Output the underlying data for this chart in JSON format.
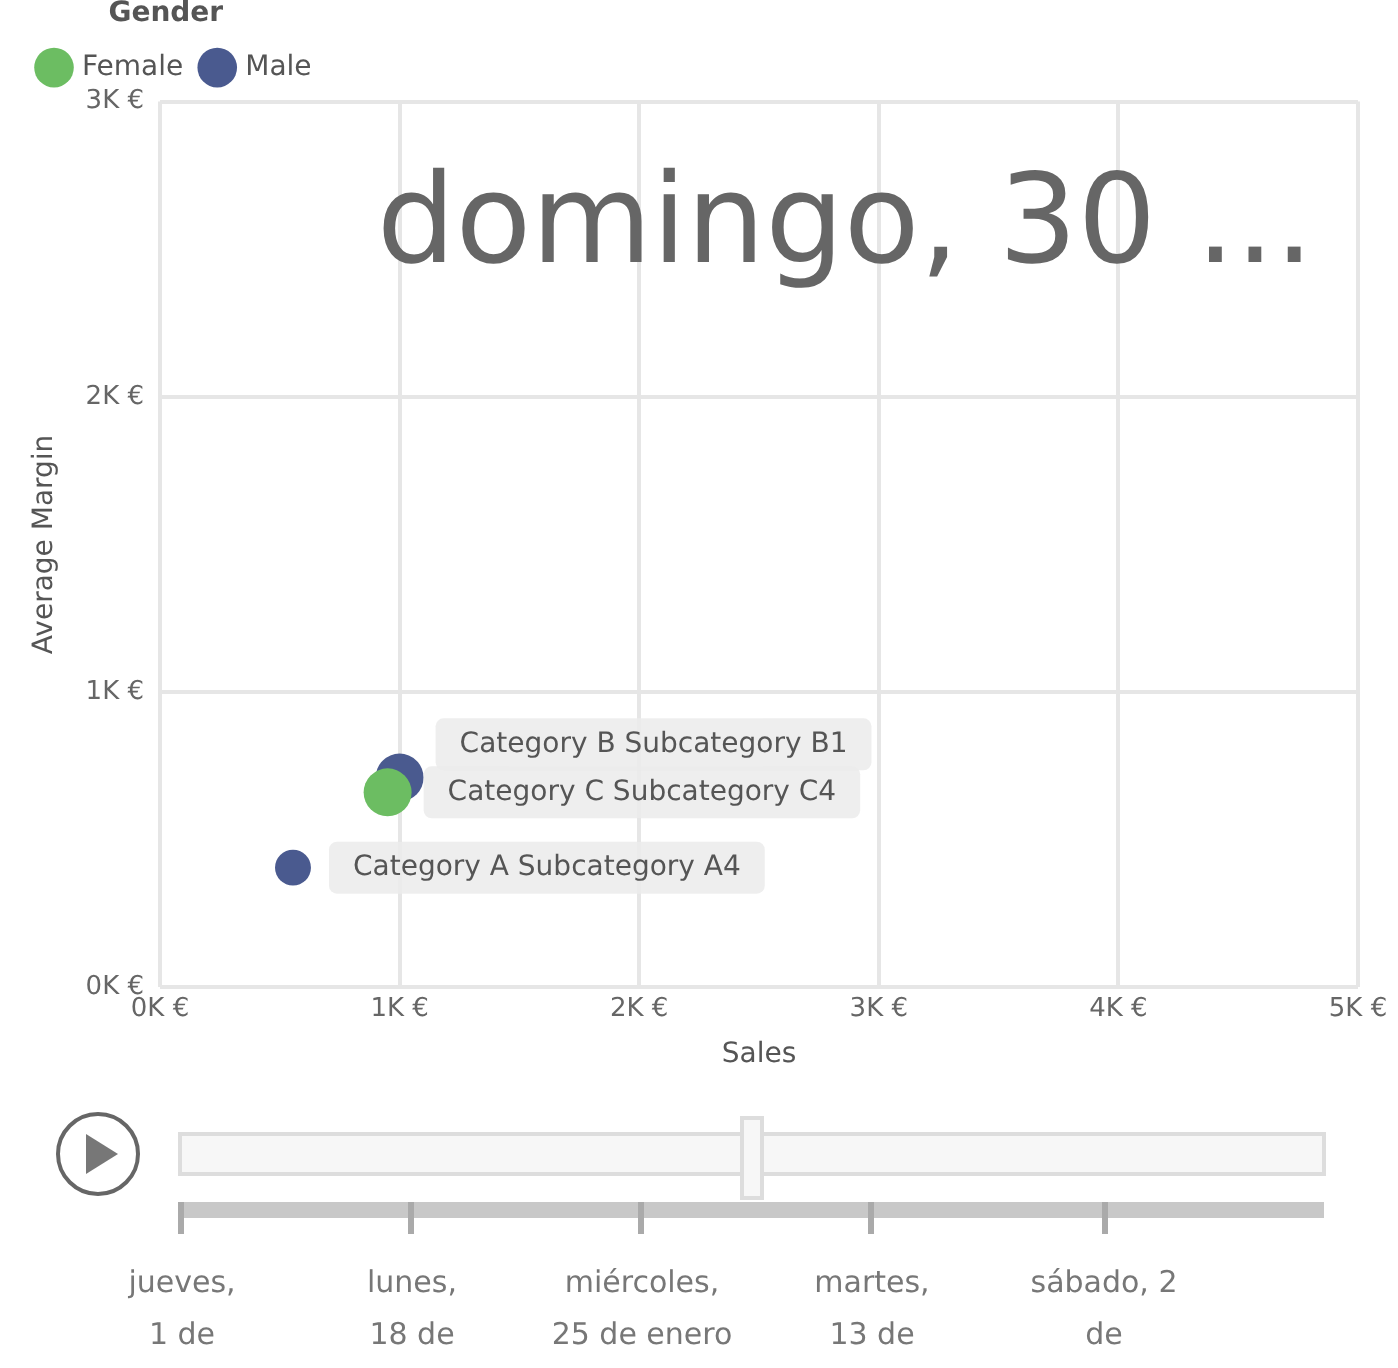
{
  "chart_data": {
    "type": "bubble",
    "xlabel": "Sales",
    "ylabel": "Average Margin",
    "legend_title": "Gender",
    "legend": "top left",
    "grid": true,
    "xlim": [
      0,
      5000
    ],
    "xticks": [
      {
        "value": 0,
        "label": "0K €"
      },
      {
        "value": 1000,
        "label": "1K €"
      },
      {
        "value": 2000,
        "label": "2K €"
      },
      {
        "value": 3000,
        "label": "3K €"
      },
      {
        "value": 4000,
        "label": "4K €"
      },
      {
        "value": 5000,
        "label": "5K €"
      }
    ],
    "ylim": [
      0,
      3000
    ],
    "yticks": [
      {
        "value": 0,
        "label": "0K €"
      },
      {
        "value": 1000,
        "label": "1K €"
      },
      {
        "value": 2000,
        "label": "2K €"
      },
      {
        "value": 3000,
        "label": "3K €"
      }
    ],
    "series": [
      {
        "name": "Female",
        "color": "#6cbd62",
        "x": [
          950
        ],
        "values": [
          660
        ],
        "sizes": [
          1
        ]
      },
      {
        "name": "Male",
        "color": "#4a5a8f",
        "x": [
          555,
          1000
        ],
        "values": [
          405,
          710
        ],
        "sizes": [
          0.56,
          1
        ]
      }
    ],
    "annotations": [
      "domingo, 30 ...",
      "jueves,\n1 de",
      "lunes,\n18 de",
      "miércoles,\n25 de enero",
      "martes,\n13 de",
      "sábado, 2\nde",
      {
        "text": "Category A Subcategory A4",
        "x": 555,
        "y": 405
      },
      {
        "text": "Category C Subcategory C4",
        "x": 950,
        "y": 660
      },
      {
        "text": "Category B Subcategory B1",
        "x": 1000,
        "y": 710
      }
    ]
  }
}
